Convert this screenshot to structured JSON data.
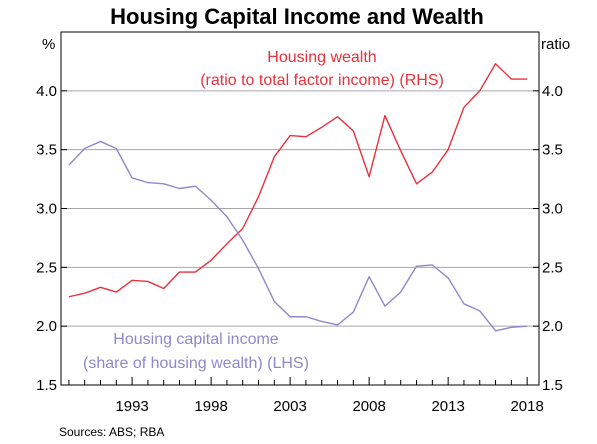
{
  "chart_data": {
    "type": "line",
    "title": "Housing Capital Income and Wealth",
    "left_axis": {
      "unit": "%",
      "ylim": [
        1.5,
        4.5
      ],
      "ticks": [
        "1.5",
        "2.0",
        "2.5",
        "3.0",
        "3.5",
        "4.0"
      ]
    },
    "right_axis": {
      "unit": "ratio",
      "ylim": [
        1.5,
        4.5
      ],
      "ticks": [
        "1.5",
        "2.0",
        "2.5",
        "3.0",
        "3.5",
        "4.0"
      ]
    },
    "xlim": [
      1988.5,
      2018.75
    ],
    "x_ticks": [
      "1993",
      "1998",
      "2003",
      "2008",
      "2013",
      "2018"
    ],
    "grid": true,
    "series": [
      {
        "name": "Housing wealth (ratio to total factor income) (RHS)",
        "label_lines": [
          "Housing wealth",
          "(ratio to total factor income) (RHS)"
        ],
        "axis": "right",
        "color": "#e8313c",
        "x": [
          1989,
          1990,
          1991,
          1992,
          1993,
          1994,
          1995,
          1996,
          1997,
          1998,
          1999,
          2000,
          2001,
          2002,
          2003,
          2004,
          2005,
          2006,
          2007,
          2008,
          2009,
          2010,
          2011,
          2012,
          2013,
          2014,
          2015,
          2016,
          2017,
          2018
        ],
        "y": [
          2.25,
          2.28,
          2.33,
          2.29,
          2.39,
          2.38,
          2.32,
          2.46,
          2.46,
          2.56,
          2.7,
          2.83,
          3.1,
          3.44,
          3.62,
          3.61,
          3.69,
          3.78,
          3.66,
          3.27,
          3.79,
          3.49,
          3.21,
          3.31,
          3.5,
          3.86,
          4.0,
          4.23,
          4.1,
          4.1
        ]
      },
      {
        "name": "Housing capital income (share of housing wealth) (LHS)",
        "label_lines": [
          "Housing capital income",
          "(share of housing wealth) (LHS)"
        ],
        "axis": "left",
        "color": "#8d88cc",
        "x": [
          1989,
          1990,
          1991,
          1992,
          1993,
          1994,
          1995,
          1996,
          1997,
          1998,
          1999,
          2000,
          2001,
          2002,
          2003,
          2004,
          2005,
          2006,
          2007,
          2008,
          2009,
          2010,
          2011,
          2012,
          2013,
          2014,
          2015,
          2016,
          2017,
          2018
        ],
        "y": [
          3.37,
          3.51,
          3.57,
          3.51,
          3.26,
          3.22,
          3.21,
          3.17,
          3.19,
          3.07,
          2.93,
          2.73,
          2.49,
          2.21,
          2.08,
          2.08,
          2.04,
          2.01,
          2.12,
          2.42,
          2.17,
          2.29,
          2.51,
          2.52,
          2.41,
          2.19,
          2.13,
          1.96,
          1.99,
          2.0
        ]
      }
    ]
  },
  "source": "Sources:   ABS; RBA"
}
